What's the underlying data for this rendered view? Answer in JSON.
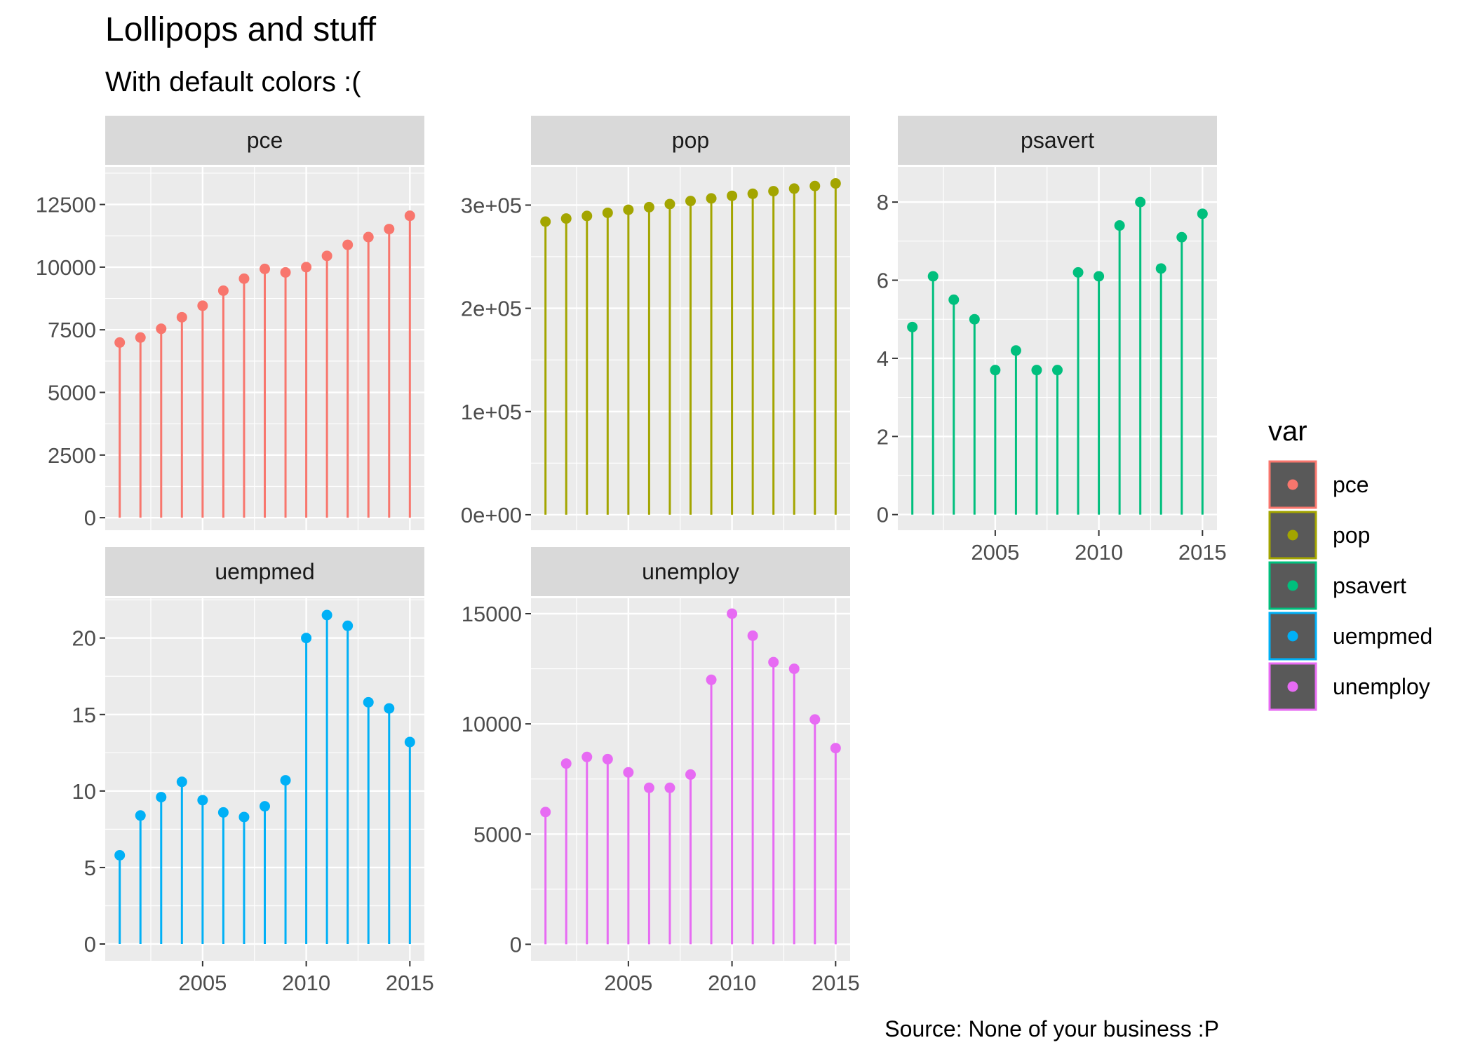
{
  "chart_data": {
    "type": "lollipop",
    "title": "Lollipops and stuff",
    "subtitle": "With default colors :(",
    "caption": "Source: None of your business :P",
    "xlabel": "",
    "ylabel": "",
    "grid": true,
    "facet_layout": "wrap, 3 columns, free y scales",
    "x_ticks": [
      2005,
      2010,
      2015
    ],
    "x_tick_labels": [
      "2005",
      "2010",
      "2015"
    ],
    "xlim": [
      2000.3,
      2015.7
    ],
    "x": [
      2001,
      2002,
      2003,
      2004,
      2005,
      2006,
      2007,
      2008,
      2009,
      2010,
      2011,
      2012,
      2013,
      2014,
      2015
    ],
    "legend": {
      "title": "var",
      "position": "right",
      "items": [
        "pce",
        "pop",
        "psavert",
        "uempmed",
        "unemploy"
      ]
    },
    "panels": [
      {
        "name": "pce",
        "color": "#F8766D",
        "ylim": [
          -500,
          14000
        ],
        "y_ticks": [
          0,
          2500,
          5000,
          7500,
          10000,
          12500
        ],
        "y_tick_labels": [
          "0",
          "2500",
          "5000",
          "7500",
          "10000",
          "12500"
        ],
        "values": [
          6990,
          7190,
          7540,
          8000,
          8460,
          9060,
          9540,
          9930,
          9790,
          10000,
          10450,
          10890,
          11200,
          11520,
          12050
        ]
      },
      {
        "name": "pop",
        "color": "#A3A500",
        "ylim": [
          -15000,
          337000
        ],
        "y_ticks": [
          0,
          100000,
          200000,
          300000
        ],
        "y_tick_labels": [
          "0e+00",
          "1e+05",
          "2e+05",
          "3e+05"
        ],
        "values": [
          284000,
          287000,
          289500,
          292500,
          295500,
          298000,
          301000,
          304000,
          306500,
          309000,
          311000,
          313500,
          316000,
          318500,
          321000
        ]
      },
      {
        "name": "psavert",
        "color": "#00BF7D",
        "ylim": [
          -0.4,
          8.9
        ],
        "y_ticks": [
          0,
          2,
          4,
          6,
          8
        ],
        "y_tick_labels": [
          "0",
          "2",
          "4",
          "6",
          "8"
        ],
        "values": [
          4.8,
          6.1,
          5.5,
          5.0,
          3.7,
          4.2,
          3.7,
          3.7,
          6.2,
          6.1,
          7.4,
          8.0,
          6.3,
          7.1,
          7.7
        ]
      },
      {
        "name": "uempmed",
        "color": "#00B0F6",
        "ylim": [
          -1.1,
          22.6
        ],
        "y_ticks": [
          0,
          5,
          10,
          15,
          20
        ],
        "y_tick_labels": [
          "0",
          "5",
          "10",
          "15",
          "20"
        ],
        "values": [
          5.8,
          8.4,
          9.6,
          10.6,
          9.4,
          8.6,
          8.3,
          9.0,
          10.7,
          20.0,
          21.5,
          20.8,
          15.8,
          15.4,
          13.2
        ]
      },
      {
        "name": "unemploy",
        "color": "#E76BF3",
        "ylim": [
          -750,
          15700
        ],
        "y_ticks": [
          0,
          5000,
          10000,
          15000
        ],
        "y_tick_labels": [
          "0",
          "5000",
          "10000",
          "15000"
        ],
        "values": [
          6000,
          8200,
          8500,
          8400,
          7800,
          7100,
          7100,
          7700,
          12000,
          15000,
          14000,
          12800,
          12500,
          10200,
          8900
        ]
      }
    ]
  }
}
